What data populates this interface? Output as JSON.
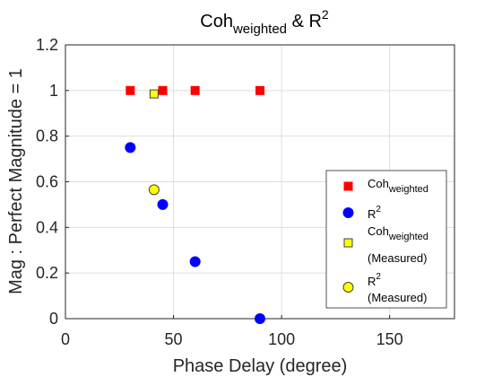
{
  "chart_data": {
    "type": "scatter",
    "title": {
      "base": "Coh",
      "sub": "weighted",
      "middle": " & R",
      "sup": "2"
    },
    "xlabel": "Phase Delay (degree)",
    "ylabel": "Mag : Perfect Magnitude = 1",
    "xlim": [
      0,
      180
    ],
    "ylim": [
      0,
      1.2
    ],
    "xticks": [
      0,
      50,
      100,
      150
    ],
    "yticks": [
      0,
      0.2,
      0.4,
      0.6,
      0.8,
      1,
      1.2
    ],
    "xtick_labels": [
      "0",
      "50",
      "100",
      "150"
    ],
    "ytick_labels": [
      "0",
      "0.2",
      "0.4",
      "0.6",
      "0.8",
      "1",
      "1.2"
    ],
    "grid": true,
    "legend_position": "bottom-right",
    "series": [
      {
        "legend": {
          "line1": "Coh",
          "sub": "weighted",
          "line2": ""
        },
        "marker": "square",
        "color": "#ff0000",
        "edge": "#ff0000",
        "x": [
          30,
          45,
          60,
          90
        ],
        "y": [
          1,
          1,
          1,
          1
        ]
      },
      {
        "legend": {
          "line1": "R",
          "sup": "2",
          "line2": ""
        },
        "marker": "circle",
        "color": "#0000ff",
        "edge": "#0000ff",
        "x": [
          30,
          45,
          60,
          90
        ],
        "y": [
          0.75,
          0.5,
          0.25,
          0
        ]
      },
      {
        "legend": {
          "line1": "Coh",
          "sub": "weighted",
          "line2": "(Measured)"
        },
        "marker": "square",
        "color": "#ffff00",
        "edge": "#404040",
        "x": [
          41
        ],
        "y": [
          0.985
        ]
      },
      {
        "legend": {
          "line1": "R",
          "sup": "2",
          "line2": "(Measured)"
        },
        "marker": "circle",
        "color": "#ffff00",
        "edge": "#404040",
        "x": [
          41
        ],
        "y": [
          0.565
        ]
      }
    ]
  }
}
